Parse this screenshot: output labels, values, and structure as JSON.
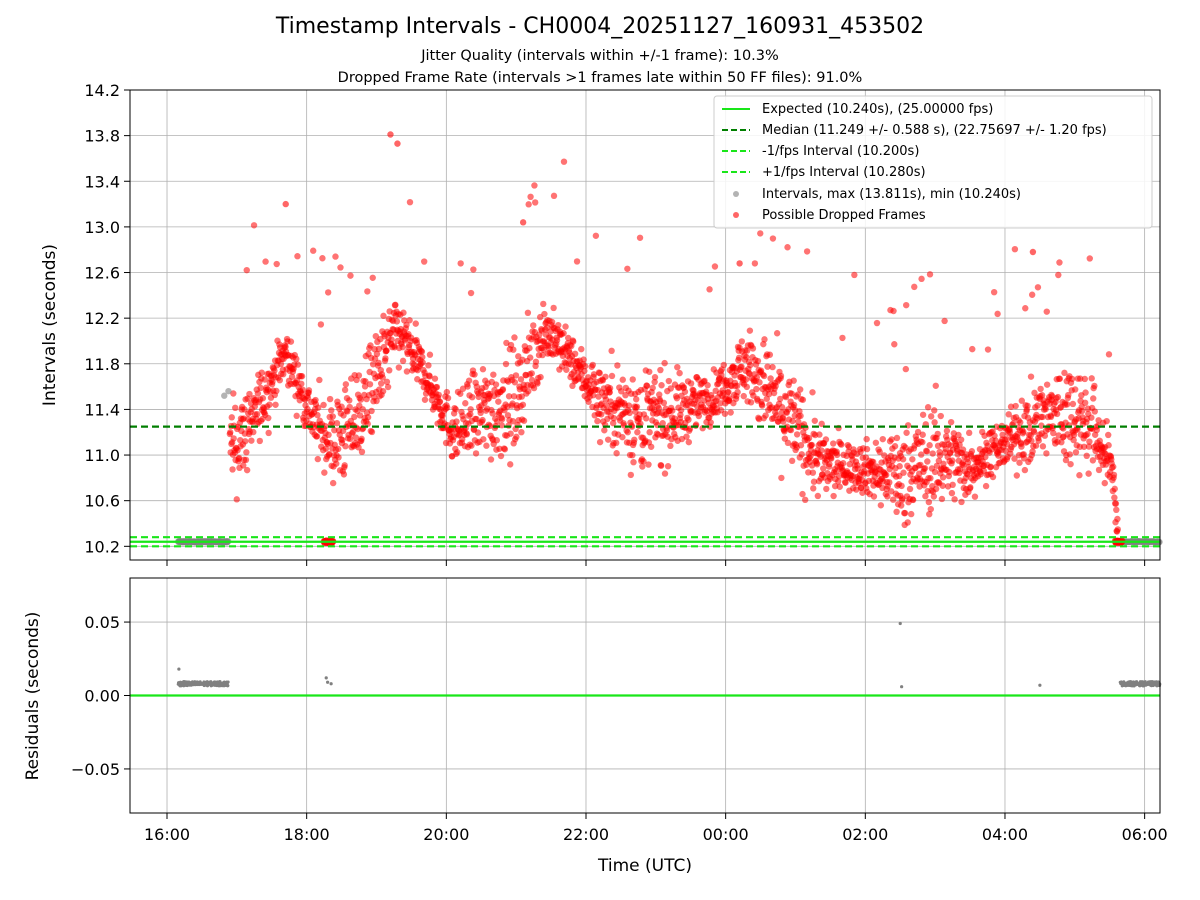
{
  "chart_data": {
    "type": "scatter",
    "title": "Timestamp Intervals - CH0004_20251127_160931_453502",
    "subtitle_lines": [
      "Jitter Quality (intervals within +/-1 frame): 10.3%",
      "Dropped Frame Rate (intervals >1 frames late within 50 FF files): 91.0%"
    ],
    "xlabel": "Time (UTC)",
    "x_ticks": [
      "16:00",
      "18:00",
      "20:00",
      "22:00",
      "00:00",
      "02:00",
      "04:00",
      "06:00"
    ],
    "x_tick_hours": [
      16,
      18,
      20,
      22,
      24,
      26,
      28,
      30
    ],
    "x_range_hours": [
      15.47,
      30.22
    ],
    "data_start_hour": 16.16,
    "data_end_hour": 30.22,
    "top_panel": {
      "ylabel": "Intervals (seconds)",
      "ylim": [
        10.08,
        14.2
      ],
      "y_ticks": [
        "10.2",
        "10.6",
        "11.0",
        "11.4",
        "11.8",
        "12.2",
        "12.6",
        "13.0",
        "13.4",
        "13.8",
        "14.2"
      ],
      "grid": true,
      "lines": [
        {
          "name": "Expected (10.240s), (25.00000 fps)",
          "y": 10.24,
          "style": "solid",
          "color": "#19e619"
        },
        {
          "name": "Median (11.249 +/- 0.588 s), (22.75697 +/- 1.20 fps)",
          "y": 11.249,
          "style": "dashed",
          "color": "#007f00"
        },
        {
          "name": "-1/fps Interval (10.200s)",
          "y": 10.2,
          "style": "dashed",
          "color": "#19e619"
        },
        {
          "name": "+1/fps Interval (10.280s)",
          "y": 10.28,
          "style": "dashed",
          "color": "#19e619"
        }
      ],
      "scatter_series": [
        {
          "name": "Intervals, max (13.811s), min (10.240s)",
          "color": "#808080",
          "max": 13.811,
          "min": 10.24
        },
        {
          "name": "Possible Dropped Frames",
          "color": "#ff0000"
        }
      ],
      "trend": [
        [
          16.85,
          10.25
        ],
        [
          16.9,
          11.0
        ],
        [
          17.3,
          11.4
        ],
        [
          17.7,
          11.9
        ],
        [
          18.1,
          11.3
        ],
        [
          18.4,
          11.1
        ],
        [
          18.8,
          11.4
        ],
        [
          19.3,
          12.1
        ],
        [
          19.7,
          11.7
        ],
        [
          20.1,
          11.2
        ],
        [
          20.6,
          11.4
        ],
        [
          21.0,
          11.5
        ],
        [
          21.4,
          12.1
        ],
        [
          21.7,
          11.9
        ],
        [
          22.2,
          11.5
        ],
        [
          22.8,
          11.3
        ],
        [
          23.4,
          11.4
        ],
        [
          23.8,
          11.5
        ],
        [
          24.3,
          11.8
        ],
        [
          24.8,
          11.4
        ],
        [
          25.4,
          10.9
        ],
        [
          25.9,
          10.9
        ],
        [
          26.5,
          10.8
        ],
        [
          27.0,
          11.0
        ],
        [
          27.5,
          10.9
        ],
        [
          28.0,
          11.1
        ],
        [
          28.5,
          11.3
        ],
        [
          29.0,
          11.4
        ],
        [
          29.3,
          11.2
        ],
        [
          29.55,
          10.8
        ],
        [
          29.65,
          10.25
        ]
      ],
      "notable_points": [
        {
          "x": 16.82,
          "y": 11.52,
          "kind": "gray"
        },
        {
          "x": 16.88,
          "y": 11.56,
          "kind": "gray"
        },
        {
          "x": 17.7,
          "y": 13.2,
          "kind": "red"
        },
        {
          "x": 19.2,
          "y": 13.81,
          "kind": "red"
        },
        {
          "x": 19.3,
          "y": 13.73,
          "kind": "red"
        },
        {
          "x": 21.1,
          "y": 13.04,
          "kind": "red"
        },
        {
          "x": 24.2,
          "y": 12.68,
          "kind": "red"
        },
        {
          "x": 28.4,
          "y": 12.78,
          "kind": "red"
        }
      ]
    },
    "bottom_panel": {
      "ylabel": "Residuals (seconds)",
      "ylim": [
        -0.08,
        0.08
      ],
      "y_ticks": [
        "0.05",
        "0.00",
        "−0.05"
      ],
      "y_tick_values": [
        0.05,
        0.0,
        -0.05
      ],
      "zero_line_color": "#19e619",
      "grid": true,
      "residual_clusters": [
        {
          "x_start": 16.16,
          "x_end": 16.88,
          "y": 0.008
        },
        {
          "x_start": 29.65,
          "x_end": 30.22,
          "y": 0.008
        }
      ],
      "residual_points": [
        {
          "x": 16.17,
          "y": 0.018
        },
        {
          "x": 18.28,
          "y": 0.012
        },
        {
          "x": 18.3,
          "y": 0.009
        },
        {
          "x": 18.35,
          "y": 0.008
        },
        {
          "x": 26.5,
          "y": 0.049
        },
        {
          "x": 26.52,
          "y": 0.006
        },
        {
          "x": 28.5,
          "y": 0.007
        }
      ]
    },
    "legend_placement": "top-right"
  }
}
